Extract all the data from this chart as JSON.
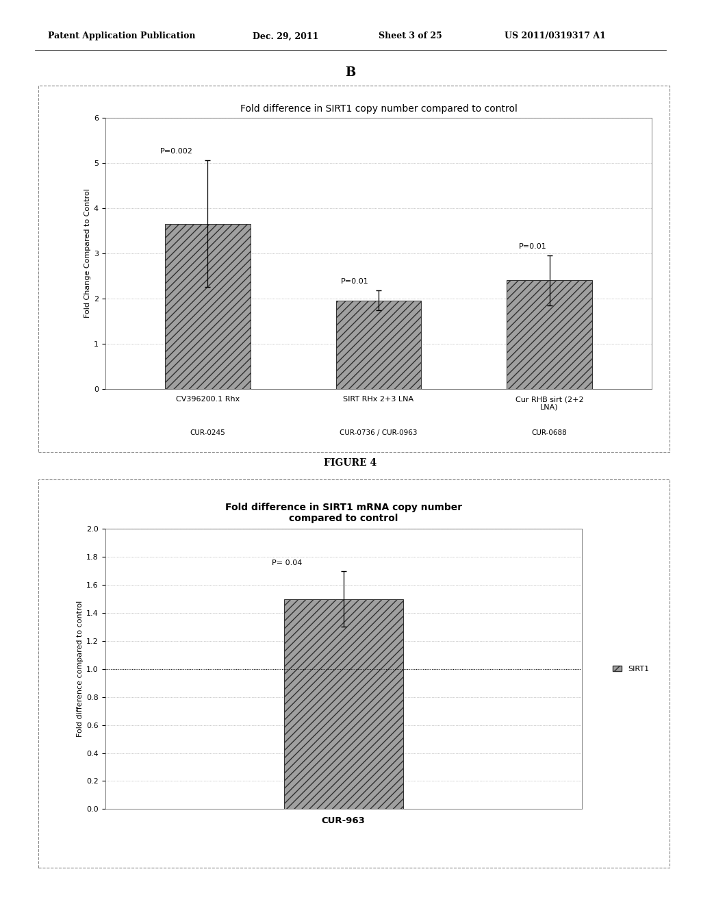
{
  "header_text": "Patent Application Publication",
  "header_date": "Dec. 29, 2011",
  "header_sheet": "Sheet 3 of 25",
  "header_patent": "US 2011/0319317 A1",
  "figure_label_top": "B",
  "figure4_label": "FIGURE 4",
  "chart1": {
    "title": "Fold difference in SIRT1 copy number compared to control",
    "ylabel": "Fold Change Compared to Control",
    "ylim": [
      0,
      6
    ],
    "yticks": [
      0,
      1,
      2,
      3,
      4,
      5,
      6
    ],
    "categories": [
      "CV396200.1 Rhx",
      "SIRT RHx 2+3 LNA",
      "Cur RHB sirt (2+2\nLNA)"
    ],
    "sub_labels": [
      "CUR-0245",
      "CUR-0736 / CUR-0963",
      "CUR-0688"
    ],
    "values": [
      3.65,
      1.95,
      2.4
    ],
    "errors": [
      1.4,
      0.22,
      0.55
    ],
    "p_values": [
      "P=0.002",
      "P=0.01",
      "P=0.01"
    ],
    "bar_color": "#a0a0a0",
    "bar_hatch": "///",
    "bar_width": 0.5
  },
  "chart2": {
    "title": "Fold difference in SIRT1 mRNA copy number\ncompared to control",
    "ylabel": "Fold difference compared to control",
    "ylim": [
      0,
      2
    ],
    "yticks": [
      0,
      0.2,
      0.4,
      0.6,
      0.8,
      1.0,
      1.2,
      1.4,
      1.6,
      1.8,
      2.0
    ],
    "categories": [
      "CUR-963"
    ],
    "values": [
      1.5
    ],
    "errors": [
      0.2
    ],
    "p_values": [
      "P= 0.04"
    ],
    "bar_color": "#a0a0a0",
    "bar_hatch": "///",
    "bar_width": 0.5,
    "legend_label": "SIRT1",
    "hline_y": 1.0
  },
  "bg_color": "#ffffff",
  "text_color": "#000000",
  "font_size_header": 9,
  "font_size_title": 10,
  "font_size_axis": 8,
  "font_size_tick": 8
}
